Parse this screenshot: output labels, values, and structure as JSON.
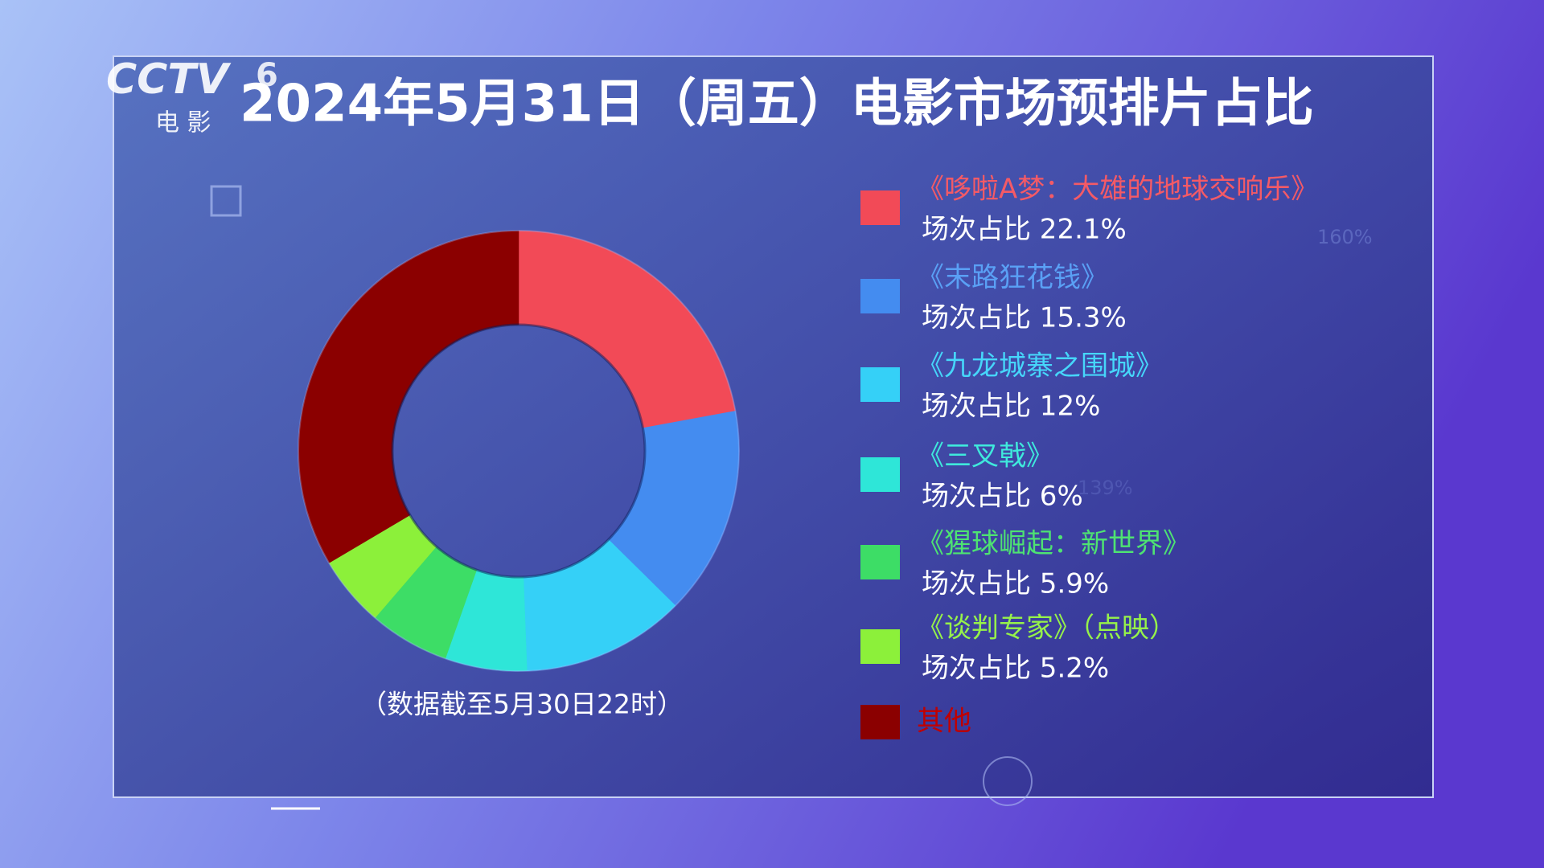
{
  "chart_data": {
    "type": "donut",
    "title": "2024年5月31日（周五）电影市场预排片占比",
    "caption": "（数据截至5月30日22时）",
    "logo": {
      "brand": "CCTV",
      "channel": "6",
      "subtitle": "电 影"
    },
    "background_texts": [
      "160%",
      "139%"
    ],
    "categories": [
      "《哆啦A梦：大雄的地球交响乐》",
      "《末路狂花钱》",
      "《九龙城寨之围城》",
      "《三叉戟》",
      "《猩球崛起：新世界》",
      "《谈判专家》（点映）",
      "其他"
    ],
    "values": [
      22.1,
      15.3,
      12,
      6,
      5.9,
      5.2,
      33.5
    ],
    "value_labels": [
      "场次占比 22.1%",
      "场次占比 15.3%",
      "场次占比 12%",
      "场次占比 6%",
      "场次占比 5.9%",
      "场次占比 5.2%",
      null
    ],
    "colors": [
      "#f24a57",
      "#448cf0",
      "#35d0f7",
      "#2ee6d8",
      "#3ddd66",
      "#8cf03a",
      "#8b0000"
    ],
    "label_colors": [
      "#f45a66",
      "#5aa0f5",
      "#46d6fa",
      "#3fe9dc",
      "#4ee372",
      "#96f24a",
      "#c00000"
    ]
  }
}
